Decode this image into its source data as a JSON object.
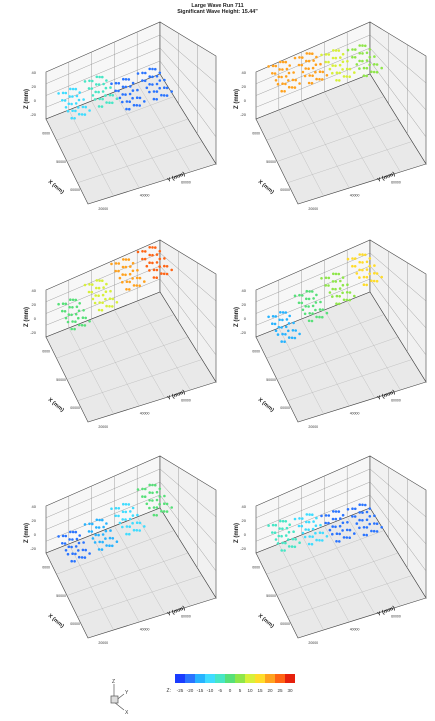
{
  "title": "Large Wave Run 711",
  "subtitle": "Significant Wave Height: 15.44\"",
  "colors": {
    "scale": [
      "#1a3cff",
      "#2a74ff",
      "#27b3ff",
      "#3fdcff",
      "#47e6c5",
      "#57e079",
      "#8fe64a",
      "#d7f03a",
      "#ffdc2a",
      "#ffa21f",
      "#ff6414",
      "#e6200c"
    ],
    "grid": "#8a8a8a",
    "wall": "#f7f7f7",
    "floor": "#e9e9e9"
  },
  "chart_data": [
    {
      "type": "scatter",
      "panel": "top-left",
      "xlabel": "X (mm)",
      "ylabel": "Y (mm)",
      "zlabel": "Z (mm)",
      "z_ticks": [
        "40",
        "20",
        "0",
        "-20"
      ],
      "x_ticks": [
        "0000",
        "50000",
        "00000"
      ],
      "y_ticks": [
        "20000",
        "40000",
        "60000"
      ],
      "clusters": [
        {
          "name": "c1",
          "z": -8
        },
        {
          "name": "c2",
          "z": -6
        },
        {
          "name": "c3",
          "z": -20
        },
        {
          "name": "c4",
          "z": -20
        }
      ]
    },
    {
      "type": "scatter",
      "panel": "top-right",
      "xlabel": "X (mm)",
      "ylabel": "Y (mm)",
      "zlabel": "Z (mm)",
      "z_ticks": [
        "40",
        "20",
        "0",
        "-20"
      ],
      "x_ticks": [
        "0000",
        "50000",
        "00000"
      ],
      "y_ticks": [
        "20000",
        "40000",
        "60000"
      ],
      "clusters": [
        {
          "name": "c1",
          "z": 22
        },
        {
          "name": "c2",
          "z": 20
        },
        {
          "name": "c3",
          "z": 12
        },
        {
          "name": "c4",
          "z": 6
        }
      ]
    },
    {
      "type": "scatter",
      "panel": "middle-left",
      "xlabel": "X (mm)",
      "ylabel": "Y (mm)",
      "zlabel": "Z (mm)",
      "z_ticks": [
        "40",
        "20",
        "0",
        "-20"
      ],
      "x_ticks": [
        "0000",
        "50000",
        "00000"
      ],
      "y_ticks": [
        "20000",
        "40000",
        "60000"
      ],
      "clusters": [
        {
          "name": "c1",
          "z": 0
        },
        {
          "name": "c2",
          "z": 10
        },
        {
          "name": "c3",
          "z": 22
        },
        {
          "name": "c4",
          "z": 24
        }
      ]
    },
    {
      "type": "scatter",
      "panel": "middle-right",
      "xlabel": "X (mm)",
      "ylabel": "Y (mm)",
      "zlabel": "Z (mm)",
      "z_ticks": [
        "40",
        "20",
        "0",
        "-20"
      ],
      "x_ticks": [
        "0000",
        "50000",
        "00000"
      ],
      "y_ticks": [
        "20000",
        "40000",
        "60000"
      ],
      "clusters": [
        {
          "name": "c1",
          "z": -14
        },
        {
          "name": "c2",
          "z": -2
        },
        {
          "name": "c3",
          "z": 6
        },
        {
          "name": "c4",
          "z": 16
        }
      ]
    },
    {
      "type": "scatter",
      "panel": "bottom-left",
      "xlabel": "X (mm)",
      "ylabel": "Y (mm)",
      "zlabel": "Z (mm)",
      "z_ticks": [
        "40",
        "20",
        "0",
        "-20"
      ],
      "x_ticks": [
        "0000",
        "50000",
        "00000"
      ],
      "y_ticks": [
        "20000",
        "40000",
        "60000"
      ],
      "clusters": [
        {
          "name": "c1",
          "z": -18
        },
        {
          "name": "c2",
          "z": -16
        },
        {
          "name": "c3",
          "z": -10
        },
        {
          "name": "c4",
          "z": 0
        }
      ]
    },
    {
      "type": "scatter",
      "panel": "bottom-right",
      "xlabel": "X (mm)",
      "ylabel": "Y (mm)",
      "zlabel": "Z (mm)",
      "z_ticks": [
        "40",
        "20",
        "0",
        "-20"
      ],
      "x_ticks": [
        "0000",
        "50000",
        "00000"
      ],
      "y_ticks": [
        "20000",
        "40000",
        "60000"
      ],
      "clusters": [
        {
          "name": "c1",
          "z": -6
        },
        {
          "name": "c2",
          "z": -10
        },
        {
          "name": "c3",
          "z": -18
        },
        {
          "name": "c4",
          "z": -22
        }
      ]
    }
  ],
  "colorbar": {
    "label": "Z:",
    "ticks": [
      "-25",
      "-20",
      "-15",
      "-10",
      "-5",
      "0",
      "5",
      "10",
      "15",
      "20",
      "25",
      "30"
    ],
    "range": [
      -25,
      30
    ]
  },
  "orientation_axes": {
    "z": "Z",
    "y": "Y",
    "x": "X"
  }
}
